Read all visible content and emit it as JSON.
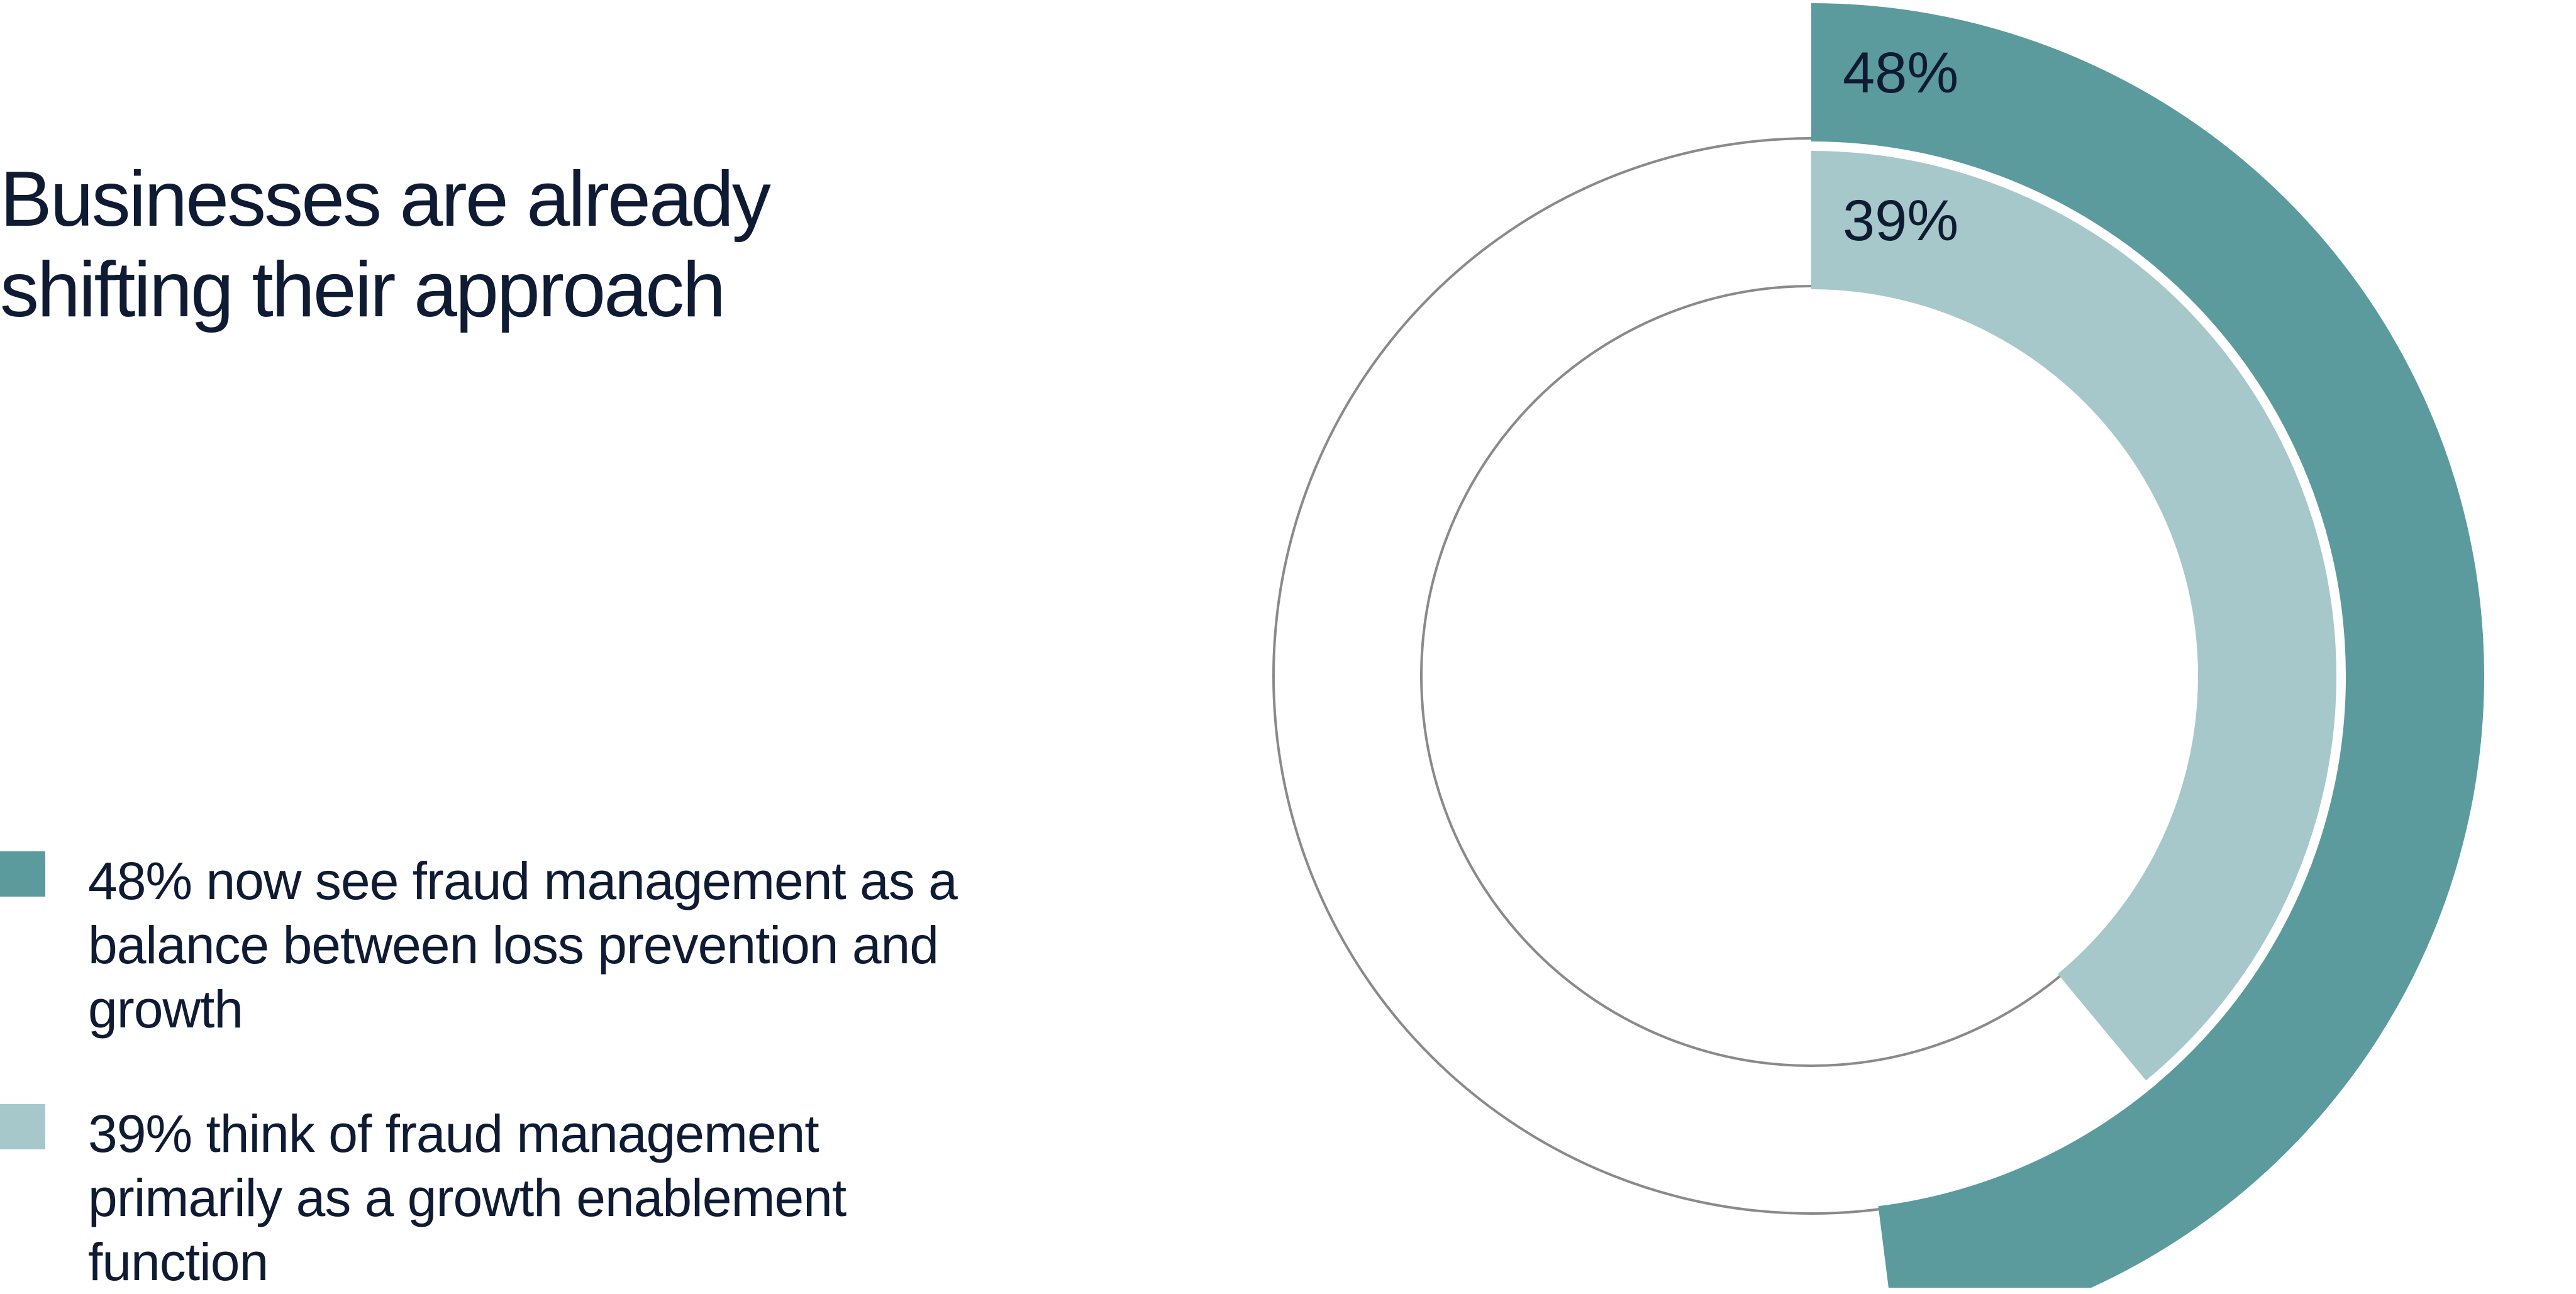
{
  "title": "Businesses are already shifting their approach",
  "colors": {
    "outer": "#5b9b9d",
    "inner": "#a6c8ca",
    "track": "#8a8a8a",
    "text": "#0f1b33"
  },
  "legend": [
    {
      "text": "48% now see fraud management as a balance between loss prevention and growth",
      "color": "#5b9b9d"
    },
    {
      "text": "39% think of fraud management primarily as a growth enablement function",
      "color": "#a6c8ca"
    }
  ],
  "chart_data": {
    "type": "pie",
    "subtype": "radial-bar",
    "title": "Businesses are already shifting their approach",
    "series": [
      {
        "name": "48% now see fraud management as a balance between loss prevention and growth",
        "value": 48,
        "label": "48%",
        "ring": "outer",
        "color": "#5b9b9d"
      },
      {
        "name": "39% think of fraud management primarily as a growth enablement function",
        "value": 39,
        "label": "39%",
        "ring": "inner",
        "color": "#a6c8ca"
      }
    ],
    "max": 100
  }
}
